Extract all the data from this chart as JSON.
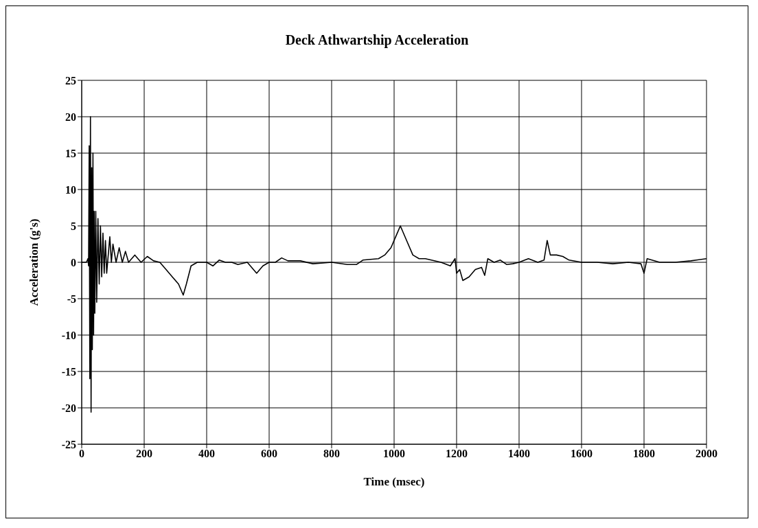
{
  "chart_data": {
    "type": "line",
    "title": "Deck Athwartship Acceleration",
    "xlabel": "Time (msec)",
    "ylabel": "Acceleration (g's)",
    "x": [
      0,
      15,
      20,
      22,
      24,
      26,
      28,
      30,
      32,
      34,
      36,
      38,
      40,
      42,
      45,
      48,
      52,
      56,
      60,
      64,
      68,
      72,
      76,
      80,
      90,
      95,
      100,
      110,
      120,
      130,
      140,
      150,
      170,
      190,
      210,
      230,
      250,
      270,
      290,
      310,
      325,
      335,
      350,
      370,
      400,
      420,
      440,
      460,
      480,
      500,
      530,
      560,
      580,
      600,
      620,
      640,
      660,
      700,
      740,
      800,
      850,
      880,
      900,
      950,
      970,
      990,
      1010,
      1020,
      1040,
      1060,
      1080,
      1100,
      1150,
      1180,
      1195,
      1200,
      1210,
      1220,
      1240,
      1260,
      1280,
      1290,
      1300,
      1320,
      1340,
      1360,
      1380,
      1400,
      1430,
      1460,
      1480,
      1490,
      1500,
      1520,
      1540,
      1560,
      1600,
      1650,
      1700,
      1750,
      1790,
      1800,
      1810,
      1850,
      1900,
      1950,
      2000
    ],
    "series": [
      {
        "color": "#000000",
        "values": [
          0,
          0,
          0.5,
          -0.5,
          16,
          -16,
          20,
          -20.6,
          13,
          -12,
          15,
          -10,
          7,
          -7,
          7,
          -5.5,
          6,
          -3,
          5,
          -2,
          4,
          -1.5,
          3,
          -1.5,
          3.5,
          0,
          2.5,
          0,
          2,
          0,
          1.5,
          0,
          1,
          0,
          0.8,
          0.2,
          0,
          -1,
          -2,
          -3,
          -4.5,
          -3,
          -0.5,
          0,
          0,
          -0.5,
          0.3,
          0,
          0,
          -0.3,
          0,
          -1.5,
          -0.5,
          0,
          0,
          0.6,
          0.2,
          0.2,
          -0.2,
          0,
          -0.3,
          -0.3,
          0.3,
          0.5,
          1,
          2,
          4,
          5,
          3,
          1,
          0.5,
          0.5,
          0,
          -0.5,
          0.5,
          -1.5,
          -1,
          -2.5,
          -2,
          -1,
          -0.7,
          -1.8,
          0.5,
          0,
          0.3,
          -0.3,
          -0.2,
          0,
          0.5,
          0,
          0.3,
          3,
          1,
          1,
          0.8,
          0.3,
          0,
          0,
          -0.2,
          0,
          -0.2,
          -1.5,
          0.5,
          0,
          0,
          0.2,
          0.5
        ]
      }
    ],
    "xlim": [
      0,
      2000
    ],
    "xticks": [
      0,
      200,
      400,
      600,
      800,
      1000,
      1200,
      1400,
      1600,
      1800,
      2000
    ],
    "ylim": [
      -25,
      25
    ],
    "yticks": [
      -25,
      -20,
      -15,
      -10,
      -5,
      0,
      5,
      10,
      15,
      20,
      25
    ],
    "grid": true,
    "legend": false,
    "marker": "none",
    "line_style": "solid"
  }
}
